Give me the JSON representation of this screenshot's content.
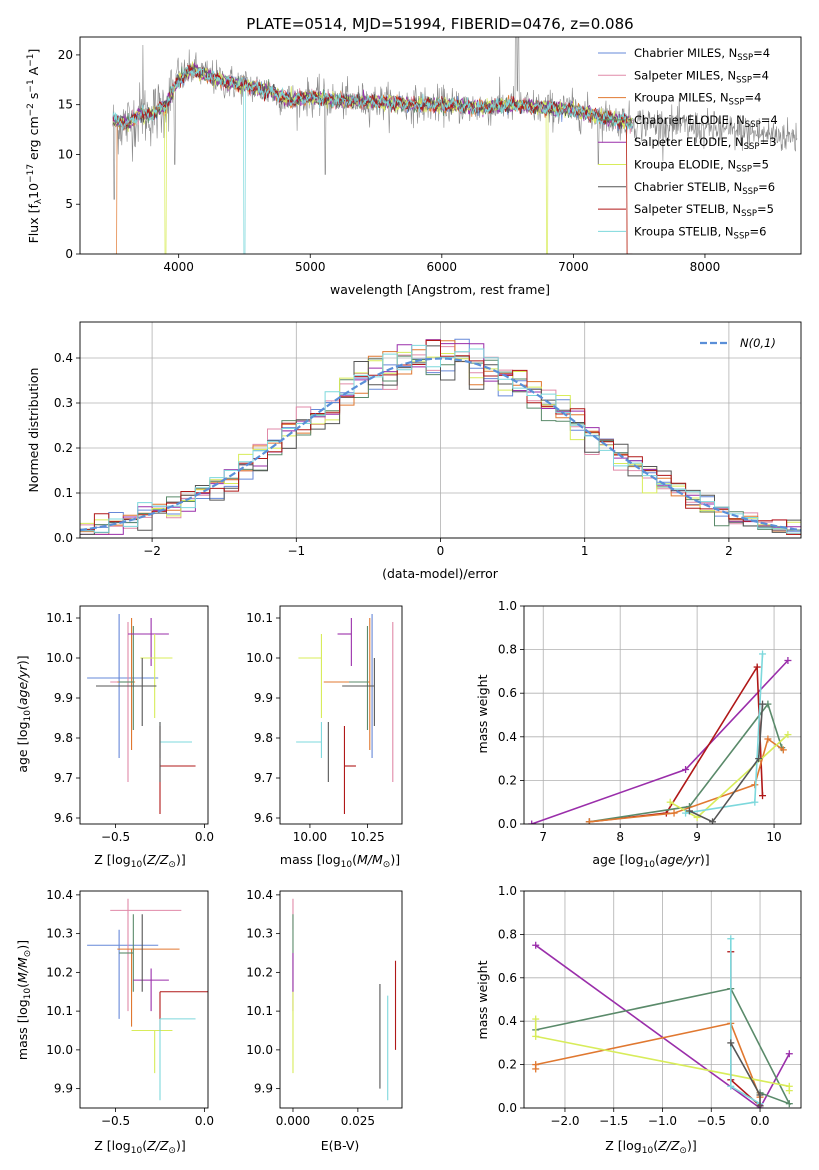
{
  "colors": {
    "chabrier_miles": "#6688d8",
    "salpeter_miles": "#e08aa8",
    "kroupa_miles": "#e07830",
    "chabrier_elodie": "#5a8a6a",
    "salpeter_elodie": "#9a2eaa",
    "kroupa_elodie": "#d8ec5a",
    "chabrier_stelib": "#555555",
    "salpeter_stelib": "#b01818",
    "kroupa_stelib": "#7dd8dc",
    "data": "#888888",
    "normal": "#5a8fd8"
  },
  "chart_data": [
    {
      "id": "spectrum",
      "type": "line",
      "title": "PLATE=0514, MJD=51994, FIBERID=0476, z=0.086",
      "xlabel": "wavelength [Angstrom, rest frame]",
      "ylabel": "Flux [f",
      "xlim": [
        3250,
        8730
      ],
      "ylim": [
        0,
        21.8
      ],
      "xticks": [
        4000,
        5000,
        6000,
        7000,
        8000
      ],
      "yticks": [
        0,
        5,
        10,
        15,
        20
      ],
      "series": [
        {
          "name": "Chabrier MILES, N",
          "ssp": "4",
          "key": "chabrier_miles"
        },
        {
          "name": "Salpeter MILES, N",
          "ssp": "4",
          "key": "salpeter_miles"
        },
        {
          "name": "Kroupa MILES, N",
          "ssp": "4",
          "key": "kroupa_miles"
        },
        {
          "name": "Chabrier ELODIE, N",
          "ssp": "4",
          "key": "chabrier_elodie"
        },
        {
          "name": "Salpeter ELODIE, N",
          "ssp": "3",
          "key": "salpeter_elodie"
        },
        {
          "name": "Kroupa ELODIE, N",
          "ssp": "5",
          "key": "kroupa_elodie"
        },
        {
          "name": "Chabrier STELIB, N",
          "ssp": "6",
          "key": "chabrier_stelib"
        },
        {
          "name": "Salpeter STELIB, N",
          "ssp": "5",
          "key": "salpeter_stelib"
        },
        {
          "name": "Kroupa STELIB, N",
          "ssp": "6",
          "key": "kroupa_stelib"
        }
      ],
      "continuum": [
        [
          3500,
          13.5
        ],
        [
          3600,
          13.0
        ],
        [
          3700,
          14.0
        ],
        [
          3800,
          14.0
        ],
        [
          3900,
          15.0
        ],
        [
          4000,
          17.5
        ],
        [
          4100,
          18.5
        ],
        [
          4200,
          18.0
        ],
        [
          4300,
          17.5
        ],
        [
          4400,
          17.2
        ],
        [
          4500,
          17.0
        ],
        [
          4700,
          16.3
        ],
        [
          4861,
          15.4
        ],
        [
          5000,
          15.8
        ],
        [
          5200,
          15.4
        ],
        [
          5500,
          15.3
        ],
        [
          5800,
          15.0
        ],
        [
          6000,
          15.0
        ],
        [
          6300,
          14.7
        ],
        [
          6563,
          15.0
        ],
        [
          6800,
          14.6
        ],
        [
          7000,
          14.5
        ],
        [
          7200,
          13.8
        ],
        [
          7400,
          13.3
        ]
      ],
      "data_range": [
        3500,
        8700
      ]
    },
    {
      "id": "residuals",
      "type": "bar",
      "xlabel": "(data-model)/error",
      "ylabel": "Normed distribution",
      "xlim": [
        -2.5,
        2.5
      ],
      "ylim": [
        0,
        0.48
      ],
      "xticks": [
        -2,
        -1,
        0,
        1,
        2
      ],
      "yticks": [
        0.0,
        0.1,
        0.2,
        0.3,
        0.4
      ],
      "legend": "N(0,1)",
      "bin_width": 0.1,
      "grid": true
    },
    {
      "id": "age_vs_z",
      "type": "scatter",
      "xlabel": "Z [log",
      "ylabel": "age  [log",
      "xlim": [
        -0.7,
        0.02
      ],
      "ylim": [
        9.585,
        10.13
      ],
      "xticks": [
        -0.5,
        0.0
      ],
      "yticks": [
        9.6,
        9.7,
        9.8,
        9.9,
        10.0,
        10.1
      ],
      "points": [
        {
          "key": "chabrier_miles",
          "x": -0.48,
          "xerr": [
            0.18,
            0.22
          ],
          "y": 9.95,
          "yerr": [
            0.2,
            0.16
          ]
        },
        {
          "key": "salpeter_miles",
          "x": -0.43,
          "xerr": [
            0.1,
            0.02
          ],
          "y": 9.94,
          "yerr": [
            0.25,
            0.15
          ]
        },
        {
          "key": "kroupa_miles",
          "x": -0.41,
          "xerr": [
            0.08,
            0.02
          ],
          "y": 9.94,
          "yerr": [
            0.17,
            0.16
          ]
        },
        {
          "key": "chabrier_elodie",
          "x": -0.4,
          "xerr": [
            0.08,
            0.0
          ],
          "y": 9.94,
          "yerr": [
            0.12,
            0.14
          ]
        },
        {
          "key": "salpeter_elodie",
          "x": -0.3,
          "xerr": [
            0.13,
            0.1
          ],
          "y": 10.06,
          "yerr": [
            0.08,
            0.04
          ]
        },
        {
          "key": "kroupa_elodie",
          "x": -0.28,
          "xerr": [
            0.08,
            0.1
          ],
          "y": 10.0,
          "yerr": [
            0.15,
            0.06
          ]
        },
        {
          "key": "chabrier_stelib",
          "x": -0.35,
          "xerr": [
            0.26,
            0.08
          ],
          "y": 9.93,
          "yerr": [
            0.1,
            0.07
          ]
        },
        {
          "key": "salpeter_stelib",
          "x": -0.25,
          "xerr": [
            0.0,
            0.2
          ],
          "y": 9.73,
          "yerr": [
            0.12,
            0.1
          ]
        },
        {
          "key": "kroupa_stelib",
          "x": -0.25,
          "xerr": [
            0.0,
            0.18
          ],
          "y": 9.79,
          "yerr": [
            0.04,
            0.05
          ]
        },
        {
          "key": "chabrier_stelib",
          "x": -0.25,
          "xerr": [
            0.0,
            0.0
          ],
          "y": 9.79,
          "yerr": [
            0.1,
            0.05
          ]
        }
      ]
    },
    {
      "id": "age_vs_mass",
      "type": "scatter",
      "xlabel": "mass [log",
      "ylabel": "",
      "xlim": [
        9.87,
        10.4
      ],
      "ylim": [
        9.585,
        10.13
      ],
      "xticks": [
        10.0,
        10.25
      ],
      "yticks": [
        9.6,
        9.7,
        9.8,
        9.9,
        10.0,
        10.1
      ],
      "points": [
        {
          "key": "chabrier_miles",
          "x": 10.27,
          "xerr": [
            0.0,
            0.0
          ],
          "y": 9.95,
          "yerr": [
            0.2,
            0.16
          ]
        },
        {
          "key": "salpeter_miles",
          "x": 10.36,
          "xerr": [
            0.0,
            0.0
          ],
          "y": 9.94,
          "yerr": [
            0.25,
            0.15
          ]
        },
        {
          "key": "kroupa_miles",
          "x": 10.26,
          "xerr": [
            0.2,
            0.0
          ],
          "y": 9.94,
          "yerr": [
            0.17,
            0.16
          ]
        },
        {
          "key": "chabrier_elodie",
          "x": 10.25,
          "xerr": [
            0.08,
            0.0
          ],
          "y": 9.94,
          "yerr": [
            0.12,
            0.14
          ]
        },
        {
          "key": "salpeter_elodie",
          "x": 10.18,
          "xerr": [
            0.06,
            0.0
          ],
          "y": 10.06,
          "yerr": [
            0.08,
            0.04
          ]
        },
        {
          "key": "kroupa_elodie",
          "x": 10.05,
          "xerr": [
            0.1,
            0.0
          ],
          "y": 10.0,
          "yerr": [
            0.15,
            0.06
          ]
        },
        {
          "key": "chabrier_stelib",
          "x": 10.28,
          "xerr": [
            0.14,
            0.0
          ],
          "y": 9.93,
          "yerr": [
            0.1,
            0.07
          ]
        },
        {
          "key": "salpeter_stelib",
          "x": 10.15,
          "xerr": [
            0.0,
            0.05
          ],
          "y": 9.73,
          "yerr": [
            0.12,
            0.1
          ]
        },
        {
          "key": "kroupa_stelib",
          "x": 10.05,
          "xerr": [
            0.11,
            0.0
          ],
          "y": 9.79,
          "yerr": [
            0.04,
            0.05
          ]
        },
        {
          "key": "chabrier_stelib",
          "x": 10.08,
          "xerr": [
            0.0,
            0.0
          ],
          "y": 9.79,
          "yerr": [
            0.1,
            0.05
          ]
        }
      ]
    },
    {
      "id": "weight_vs_age",
      "type": "line",
      "xlabel": "age  [log",
      "ylabel": "mass weight",
      "xlim": [
        6.75,
        10.35
      ],
      "ylim": [
        0,
        1
      ],
      "xticks": [
        7,
        8,
        9,
        10
      ],
      "yticks": [
        0.0,
        0.2,
        0.4,
        0.6,
        0.8,
        1.0
      ],
      "grid": true,
      "series": [
        {
          "key": "salpeter_elodie",
          "points": [
            [
              6.85,
              0.0
            ],
            [
              8.85,
              0.25
            ],
            [
              10.18,
              0.75
            ]
          ]
        },
        {
          "key": "salpeter_stelib",
          "points": [
            [
              7.6,
              0.01
            ],
            [
              8.6,
              0.05
            ],
            [
              9.78,
              0.72
            ],
            [
              9.85,
              0.13
            ]
          ]
        },
        {
          "key": "chabrier_elodie",
          "points": [
            [
              7.6,
              0.01
            ],
            [
              8.9,
              0.08
            ],
            [
              9.92,
              0.55
            ],
            [
              10.1,
              0.35
            ]
          ]
        },
        {
          "key": "kroupa_miles",
          "points": [
            [
              7.6,
              0.01
            ],
            [
              8.7,
              0.05
            ],
            [
              9.75,
              0.18
            ],
            [
              9.92,
              0.39
            ],
            [
              10.12,
              0.34
            ]
          ]
        },
        {
          "key": "kroupa_elodie",
          "points": [
            [
              8.65,
              0.1
            ],
            [
              9.0,
              0.03
            ],
            [
              10.18,
              0.41
            ]
          ]
        },
        {
          "key": "kroupa_stelib",
          "points": [
            [
              8.85,
              0.05
            ],
            [
              9.75,
              0.1
            ],
            [
              9.85,
              0.78
            ]
          ]
        },
        {
          "key": "chabrier_stelib",
          "points": [
            [
              8.9,
              0.06
            ],
            [
              9.2,
              0.01
            ],
            [
              9.8,
              0.3
            ],
            [
              9.85,
              0.55
            ]
          ]
        }
      ]
    },
    {
      "id": "mass_vs_z",
      "type": "scatter",
      "xlabel": "Z [log",
      "ylabel": "mass [log",
      "xlim": [
        -0.7,
        0.02
      ],
      "ylim": [
        9.85,
        10.41
      ],
      "xticks": [
        -0.5,
        0.0
      ],
      "yticks": [
        9.9,
        10.0,
        10.1,
        10.2,
        10.3,
        10.4
      ],
      "points": [
        {
          "key": "chabrier_miles",
          "x": -0.48,
          "xerr": [
            0.18,
            0.22
          ],
          "y": 10.27,
          "yerr": [
            0.19,
            0.04
          ]
        },
        {
          "key": "salpeter_miles",
          "x": -0.43,
          "xerr": [
            0.1,
            0.3
          ],
          "y": 10.36,
          "yerr": [
            0.26,
            0.03
          ]
        },
        {
          "key": "kroupa_miles",
          "x": -0.41,
          "xerr": [
            0.08,
            0.27
          ],
          "y": 10.26,
          "yerr": [
            0.2,
            0.0
          ]
        },
        {
          "key": "chabrier_elodie",
          "x": -0.4,
          "xerr": [
            0.08,
            0.0
          ],
          "y": 10.25,
          "yerr": [
            0.1,
            0.1
          ]
        },
        {
          "key": "salpeter_elodie",
          "x": -0.3,
          "xerr": [
            0.1,
            0.1
          ],
          "y": 10.18,
          "yerr": [
            0.08,
            0.03
          ]
        },
        {
          "key": "kroupa_elodie",
          "x": -0.28,
          "xerr": [
            0.13,
            0.1
          ],
          "y": 10.05,
          "yerr": [
            0.11,
            0.0
          ]
        },
        {
          "key": "chabrier_stelib",
          "x": -0.35,
          "xerr": [
            0.0,
            0.0
          ],
          "y": 10.28,
          "yerr": [
            0.13,
            0.07
          ]
        },
        {
          "key": "salpeter_stelib",
          "x": -0.25,
          "xerr": [
            0.0,
            0.27
          ],
          "y": 10.15,
          "yerr": [
            0.1,
            0.0
          ]
        },
        {
          "key": "kroupa_stelib",
          "x": -0.25,
          "xerr": [
            0.0,
            0.2
          ],
          "y": 10.08,
          "yerr": [
            0.21,
            0.0
          ]
        }
      ]
    },
    {
      "id": "mass_vs_ebv",
      "type": "scatter",
      "xlabel": "E(B-V)",
      "ylabel": "",
      "xlim": [
        -0.005,
        0.042
      ],
      "ylim": [
        9.85,
        10.41
      ],
      "xticks": [
        0.0,
        0.025
      ],
      "yticks": [
        9.9,
        10.0,
        10.1,
        10.2,
        10.3,
        10.4
      ],
      "points": [
        {
          "key": "salpeter_miles",
          "x": 0.0,
          "xerr": [
            0,
            0
          ],
          "y": 10.36,
          "yerr": [
            0.05,
            0.03
          ]
        },
        {
          "key": "chabrier_elodie",
          "x": 0.0,
          "xerr": [
            0,
            0
          ],
          "y": 10.25,
          "yerr": [
            0.1,
            0.1
          ]
        },
        {
          "key": "salpeter_elodie",
          "x": 0.0,
          "xerr": [
            0,
            0
          ],
          "y": 10.18,
          "yerr": [
            0.08,
            0.07
          ]
        },
        {
          "key": "kroupa_elodie",
          "x": 0.0,
          "xerr": [
            0,
            0
          ],
          "y": 10.05,
          "yerr": [
            0.11,
            0.1
          ]
        },
        {
          "key": "chabrier_stelib",
          "x": 0.0335,
          "xerr": [
            0,
            0
          ],
          "y": 10.03,
          "yerr": [
            0.13,
            0.14
          ]
        },
        {
          "key": "kroupa_stelib",
          "x": 0.0365,
          "xerr": [
            0,
            0
          ],
          "y": 10.0,
          "yerr": [
            0.13,
            0.14
          ]
        },
        {
          "key": "salpeter_stelib",
          "x": 0.0395,
          "xerr": [
            0,
            0
          ],
          "y": 10.11,
          "yerr": [
            0.11,
            0.12
          ]
        }
      ]
    },
    {
      "id": "weight_vs_z",
      "type": "line",
      "xlabel": "Z [log",
      "ylabel": "mass weight",
      "xlim": [
        -2.42,
        0.42
      ],
      "ylim": [
        0,
        1
      ],
      "xticks": [
        -2.0,
        -1.5,
        -1.0,
        -0.5,
        0.0
      ],
      "yticks": [
        0.0,
        0.2,
        0.4,
        0.6,
        0.8,
        1.0
      ],
      "grid": true,
      "series": [
        {
          "key": "salpeter_elodie",
          "points": [
            [
              -2.3,
              0.75
            ],
            [
              0.0,
              0.0
            ],
            [
              0.3,
              0.25
            ]
          ]
        },
        {
          "key": "chabrier_elodie",
          "points": [
            [
              -2.3,
              0.36
            ],
            [
              -0.3,
              0.55
            ],
            [
              0.3,
              0.02
            ],
            [
              0.0,
              0.07
            ]
          ]
        },
        {
          "key": "kroupa_miles",
          "points": [
            [
              -2.3,
              0.18
            ],
            [
              -2.3,
              0.2
            ],
            [
              -0.3,
              0.39
            ],
            [
              0.0,
              0.05
            ]
          ]
        },
        {
          "key": "kroupa_elodie",
          "points": [
            [
              -2.3,
              0.41
            ],
            [
              -2.3,
              0.33
            ],
            [
              0.3,
              0.1
            ],
            [
              0.3,
              0.08
            ]
          ]
        },
        {
          "key": "salpeter_stelib",
          "points": [
            [
              -0.3,
              0.72
            ],
            [
              -0.3,
              0.13
            ],
            [
              0.0,
              0.01
            ]
          ]
        },
        {
          "key": "kroupa_stelib",
          "points": [
            [
              -0.3,
              0.78
            ],
            [
              -0.3,
              0.1
            ],
            [
              0.0,
              0.02
            ]
          ]
        },
        {
          "key": "chabrier_stelib",
          "points": [
            [
              -0.3,
              0.3
            ],
            [
              0.0,
              0.06
            ],
            [
              0.0,
              0.01
            ]
          ]
        }
      ]
    }
  ]
}
